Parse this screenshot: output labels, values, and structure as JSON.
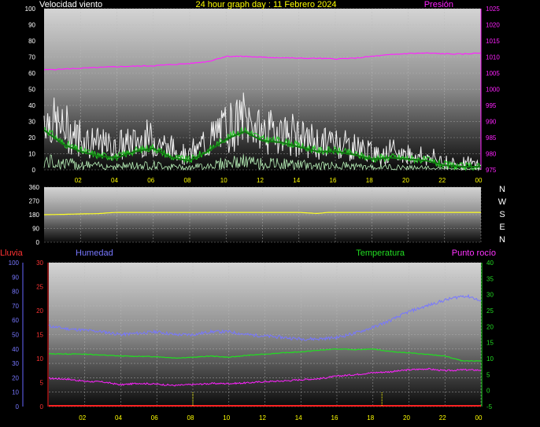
{
  "header": {
    "title": "24 hour graph day : 11 Febrero 2024",
    "left_label": "Velocidad viento",
    "right_label": "Presión"
  },
  "wind_dir": {
    "compass": [
      "N",
      "W",
      "S",
      "E",
      "N"
    ]
  },
  "lower": {
    "labels": {
      "rain": "Lluvia",
      "humidity": "Humedad",
      "temperature": "Temperatura",
      "dewpoint": "Punto rocío"
    }
  },
  "colors": {
    "title": "#ffff00",
    "pressure": "#ff22ff",
    "wind_gust": "#ffffff",
    "wind_avg": "#22bb22",
    "wind_dir": "#ffff22",
    "rain": "#ff2222",
    "humidity": "#7777ff",
    "temperature": "#22dd22",
    "dewpoint": "#ff22ff",
    "time_tick": "#ffff00"
  },
  "chart_data": [
    {
      "type": "line",
      "title": "24 hour graph day : 11 Febrero 2024",
      "x_ticks": [
        "02",
        "04",
        "06",
        "08",
        "10",
        "12",
        "14",
        "16",
        "18",
        "20",
        "22",
        "00"
      ],
      "x_range_hours": [
        0,
        24
      ],
      "y_left": {
        "label": "Velocidad viento",
        "range": [
          0,
          100
        ],
        "ticks": [
          0,
          10,
          20,
          30,
          40,
          50,
          60,
          70,
          80,
          90,
          100
        ]
      },
      "y_right": {
        "label": "Presión",
        "range": [
          975,
          1025
        ],
        "ticks": [
          975,
          980,
          985,
          990,
          995,
          1000,
          1005,
          1010,
          1015,
          1020,
          1025
        ]
      },
      "grid": true,
      "series": [
        {
          "key": "pressure",
          "axis": "right",
          "x": [
            0,
            2,
            4,
            6,
            8,
            9,
            10,
            11,
            12,
            13,
            14,
            15,
            16,
            17,
            18,
            19,
            20,
            21,
            22,
            23,
            24
          ],
          "y": [
            1006,
            1006.5,
            1007,
            1007.3,
            1008,
            1008.6,
            1010.2,
            1010.2,
            1009.9,
            1009.8,
            1009.6,
            1009.6,
            1009.4,
            1009.6,
            1010.2,
            1010.7,
            1011.1,
            1011.2,
            1011.0,
            1010.9,
            1011.3
          ]
        },
        {
          "key": "gust",
          "axis": "left",
          "x": [
            0,
            1,
            2,
            3,
            4,
            5,
            6,
            7,
            8,
            9,
            10,
            11,
            12,
            13,
            14,
            15,
            16,
            17,
            18,
            19,
            20,
            21,
            22,
            23,
            24
          ],
          "y": [
            42,
            32,
            26,
            20,
            18,
            22,
            24,
            16,
            12,
            22,
            34,
            40,
            30,
            30,
            26,
            20,
            22,
            18,
            13,
            14,
            12,
            10,
            6,
            5,
            4
          ]
        },
        {
          "key": "average",
          "axis": "left",
          "x": [
            0,
            1,
            2,
            3,
            4,
            5,
            6,
            7,
            8,
            9,
            10,
            11,
            12,
            13,
            14,
            15,
            16,
            17,
            18,
            19,
            20,
            21,
            22,
            23,
            24
          ],
          "y": [
            26,
            17,
            12,
            9,
            8,
            12,
            14,
            8,
            6,
            12,
            20,
            25,
            19,
            18,
            15,
            12,
            12,
            10,
            7,
            8,
            7,
            6,
            3,
            2,
            2
          ]
        }
      ]
    },
    {
      "type": "line",
      "title": "",
      "x_range_hours": [
        0,
        24
      ],
      "y_left": {
        "label": "",
        "range": [
          0,
          360
        ],
        "ticks": [
          0,
          90,
          180,
          270,
          360
        ]
      },
      "grid": true,
      "series": [
        {
          "key": "wind_direction",
          "axis": "left",
          "x": [
            0,
            1,
            2,
            3,
            3.5,
            4,
            8,
            14,
            15,
            15.6,
            16,
            20,
            24
          ],
          "y": [
            180,
            182,
            185,
            187,
            192,
            195,
            195,
            195,
            188,
            195,
            195,
            195,
            195
          ]
        }
      ]
    },
    {
      "type": "line",
      "title": "",
      "x_ticks": [
        "02",
        "04",
        "06",
        "08",
        "10",
        "12",
        "14",
        "16",
        "18",
        "20",
        "22",
        "00"
      ],
      "x_range_hours": [
        0,
        24
      ],
      "y_left_outer": {
        "label": "Humedad",
        "range": [
          0,
          100
        ],
        "ticks": [
          0,
          10,
          20,
          30,
          40,
          50,
          60,
          70,
          80,
          90,
          100
        ]
      },
      "y_left_inner": {
        "label": "Lluvia",
        "range": [
          0,
          30
        ],
        "ticks": [
          0,
          5,
          10,
          15,
          20,
          25,
          30
        ]
      },
      "y_right": {
        "label": "Temperatura",
        "range": [
          -5,
          40
        ],
        "ticks": [
          -5,
          0,
          5,
          10,
          15,
          20,
          25,
          30,
          35,
          40
        ]
      },
      "grid": true,
      "series": [
        {
          "key": "rain",
          "axis": "left_inner",
          "x": [
            0,
            24
          ],
          "y": [
            0,
            0
          ]
        },
        {
          "key": "humidity",
          "axis": "left_outer",
          "x": [
            0,
            1,
            2,
            3,
            4,
            5,
            6,
            7,
            8,
            9,
            10,
            11,
            12,
            13,
            14,
            15,
            16,
            17,
            18,
            19,
            20,
            21,
            22,
            23,
            23.5,
            24
          ],
          "y": [
            56,
            54,
            53,
            52,
            50,
            51,
            52,
            50,
            50,
            52,
            52,
            50,
            49,
            48,
            47,
            47,
            48,
            51,
            55,
            60,
            66,
            70,
            74,
            77,
            76,
            73
          ]
        },
        {
          "key": "temperature",
          "axis": "right",
          "x": [
            0,
            2,
            4,
            6,
            7,
            8,
            9,
            10,
            11,
            12,
            13,
            14,
            15,
            16,
            17,
            18,
            19,
            20,
            21,
            22,
            23,
            24
          ],
          "y": [
            11.5,
            11.4,
            10.8,
            10.6,
            10.2,
            10.4,
            10.8,
            10.4,
            11,
            11.4,
            11.8,
            12.1,
            12.6,
            13,
            12.8,
            13,
            12.2,
            11.8,
            11.3,
            10.8,
            9.2,
            9.3
          ]
        },
        {
          "key": "dewpoint",
          "axis": "right",
          "x": [
            0,
            1,
            2,
            3,
            4,
            5,
            6,
            7,
            8,
            9,
            10,
            11,
            12,
            13,
            14,
            15,
            16,
            17,
            18,
            19,
            20,
            21,
            22,
            23,
            24
          ],
          "y": [
            3.8,
            3.6,
            2.9,
            2.7,
            1.8,
            2.3,
            2.0,
            1.6,
            1.9,
            2.2,
            2.2,
            2.4,
            2.8,
            3.0,
            3.4,
            3.7,
            4.5,
            5.0,
            5.6,
            5.9,
            6.5,
            6.8,
            6.2,
            6.5,
            6.4
          ]
        }
      ],
      "markers": {
        "time_ticks_hours": [
          8,
          18.5
        ]
      }
    }
  ]
}
